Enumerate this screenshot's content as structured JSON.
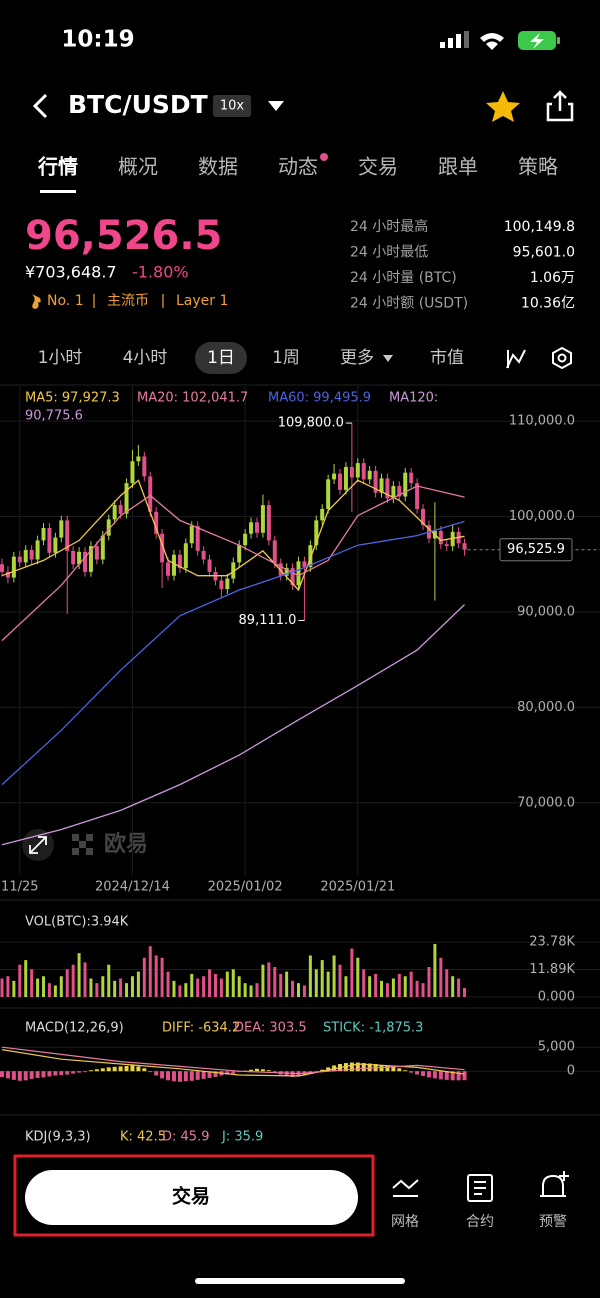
{
  "status_bar": {
    "time": "10:19"
  },
  "header": {
    "pair": "BTC/USDT",
    "leverage": "10x"
  },
  "tabs": [
    "行情",
    "概况",
    "数据",
    "动态",
    "交易",
    "跟单",
    "策略"
  ],
  "price": {
    "last": "96,526.5",
    "cny": "¥703,648.7",
    "change": "-1.80%",
    "tags": [
      "No. 1",
      "主流币",
      "Layer 1"
    ]
  },
  "stats": [
    {
      "label": "24 小时最高",
      "value": "100,149.8"
    },
    {
      "label": "24 小时最低",
      "value": "95,601.0"
    },
    {
      "label": "24 小时量 (BTC)",
      "value": "1.06万"
    },
    {
      "label": "24 小时额 (USDT)",
      "value": "10.36亿"
    }
  ],
  "timeframes": [
    "1小时",
    "4小时",
    "1日",
    "1周",
    "更多",
    "市值"
  ],
  "active_timeframe_index": 2,
  "watermark": "欧易",
  "chart_data": [
    {
      "type": "candlestick",
      "up_color": "#b0d63c",
      "down_color": "#e2508b",
      "ylim": [
        64000,
        114000
      ],
      "yticks": [
        {
          "value": 70000,
          "label": "70,000.0"
        },
        {
          "value": 80000,
          "label": "80,000.0"
        },
        {
          "value": 90000,
          "label": "90,000.0"
        },
        {
          "value": 100000,
          "label": "100,000.0"
        },
        {
          "value": 110000,
          "label": "110,000.0"
        }
      ],
      "xlim": [
        0,
        78
      ],
      "xticks": [
        {
          "value": 3,
          "label": "11/25"
        },
        {
          "value": 22,
          "label": "2024/12/14"
        },
        {
          "value": 41,
          "label": "2025/01/02"
        },
        {
          "value": 60,
          "label": "2025/01/21"
        }
      ],
      "candles": [
        [
          95000,
          95600,
          93700,
          94200
        ],
        [
          94200,
          94800,
          93000,
          93600
        ],
        [
          93600,
          96300,
          93100,
          95800
        ],
        [
          95800,
          96400,
          94700,
          95200
        ],
        [
          95200,
          97000,
          94700,
          96500
        ],
        [
          96500,
          97000,
          95000,
          95500
        ],
        [
          95500,
          98000,
          95000,
          97500
        ],
        [
          97500,
          99300,
          97000,
          98800
        ],
        [
          98800,
          99300,
          95700,
          96200
        ],
        [
          96200,
          98300,
          95700,
          97800
        ],
        [
          97800,
          100100,
          97300,
          99600
        ],
        [
          99600,
          100100,
          89800,
          96400
        ],
        [
          96400,
          96900,
          94500,
          95000
        ],
        [
          95000,
          96800,
          94500,
          96300
        ],
        [
          96300,
          96800,
          93700,
          94200
        ],
        [
          94200,
          97400,
          93700,
          96900
        ],
        [
          96900,
          97400,
          95000,
          95500
        ],
        [
          95500,
          98500,
          95000,
          98000
        ],
        [
          98000,
          100200,
          97500,
          99700
        ],
        [
          99700,
          101700,
          99200,
          101200
        ],
        [
          101200,
          101700,
          99800,
          100300
        ],
        [
          100300,
          104000,
          99800,
          103500
        ],
        [
          103500,
          107000,
          103000,
          105800
        ],
        [
          105800,
          107500,
          105300,
          106300
        ],
        [
          106300,
          106800,
          103700,
          104200
        ],
        [
          104200,
          104700,
          100000,
          100500
        ],
        [
          100500,
          101000,
          97700,
          98200
        ],
        [
          98200,
          98700,
          92500,
          95200
        ],
        [
          95200,
          95700,
          93300,
          93800
        ],
        [
          93800,
          96500,
          93300,
          96000
        ],
        [
          96000,
          96500,
          94100,
          94600
        ],
        [
          94600,
          97700,
          94100,
          97200
        ],
        [
          97200,
          99500,
          96700,
          99000
        ],
        [
          99000,
          99500,
          95900,
          96400
        ],
        [
          96400,
          96900,
          95000,
          95500
        ],
        [
          95500,
          96000,
          93700,
          94200
        ],
        [
          94200,
          94700,
          92800,
          93300
        ],
        [
          93300,
          93800,
          91500,
          92400
        ],
        [
          92400,
          94000,
          91900,
          93500
        ],
        [
          93500,
          95700,
          93000,
          95200
        ],
        [
          95200,
          97500,
          94700,
          97000
        ],
        [
          97000,
          98700,
          96500,
          98200
        ],
        [
          98200,
          99900,
          97700,
          99400
        ],
        [
          99400,
          99900,
          97800,
          98300
        ],
        [
          98300,
          102300,
          97800,
          101200
        ],
        [
          101200,
          101700,
          97000,
          97500
        ],
        [
          97500,
          98000,
          94600,
          95100
        ],
        [
          95100,
          95600,
          93300,
          93800
        ],
        [
          93800,
          95100,
          93300,
          94600
        ],
        [
          94600,
          95100,
          92300,
          92800
        ],
        [
          92800,
          95800,
          92300,
          95300
        ],
        [
          95300,
          95800,
          89111,
          94700
        ],
        [
          94700,
          97500,
          94200,
          97000
        ],
        [
          97000,
          100100,
          96500,
          99600
        ],
        [
          99600,
          101300,
          99100,
          100800
        ],
        [
          100800,
          104400,
          100300,
          103900
        ],
        [
          103900,
          105500,
          103400,
          104500
        ],
        [
          104500,
          105000,
          102300,
          102800
        ],
        [
          102800,
          105700,
          102300,
          105200
        ],
        [
          105200,
          109800,
          100500,
          104100
        ],
        [
          104100,
          106100,
          103600,
          105600
        ],
        [
          105600,
          106100,
          103400,
          103900
        ],
        [
          103900,
          105300,
          103400,
          104800
        ],
        [
          104800,
          105300,
          102000,
          102500
        ],
        [
          102500,
          104500,
          102000,
          104000
        ],
        [
          104000,
          104500,
          101400,
          101900
        ],
        [
          101900,
          103700,
          101400,
          103200
        ],
        [
          103200,
          103700,
          101600,
          102100
        ],
        [
          102100,
          105100,
          101600,
          104600
        ],
        [
          104600,
          105100,
          103000,
          103500
        ],
        [
          103500,
          104000,
          100300,
          100800
        ],
        [
          100800,
          101300,
          98600,
          99100
        ],
        [
          99100,
          99600,
          97200,
          97700
        ],
        [
          97700,
          101500,
          91200,
          98500
        ],
        [
          98500,
          99000,
          96600,
          97100
        ],
        [
          97100,
          97600,
          96400,
          96900
        ],
        [
          96900,
          99200,
          96400,
          98400
        ],
        [
          98400,
          98900,
          96700,
          97200
        ],
        [
          97200,
          97700,
          95900,
          96525.9
        ]
      ],
      "series": [
        {
          "name": "MA5",
          "legend_lines": [
            "MA5: 97,927.3"
          ],
          "color": "#f0c94a",
          "x": [
            0,
            7,
            13,
            20,
            23,
            28,
            33,
            38,
            44,
            50,
            55,
            60,
            67,
            74,
            78
          ],
          "values": [
            93800,
            95400,
            97500,
            102200,
            103800,
            95400,
            93800,
            93800,
            96400,
            92300,
            100600,
            103800,
            101700,
            97500,
            97927.3
          ]
        },
        {
          "name": "MA20",
          "legend_lines": [
            "MA20: 102,041.7"
          ],
          "color": "#e87ca0",
          "x": [
            0,
            10,
            20,
            25,
            30,
            40,
            50,
            55,
            60,
            70,
            78
          ],
          "values": [
            87000,
            92800,
            100100,
            102200,
            99600,
            97000,
            93800,
            95400,
            100100,
            103200,
            102041.7
          ]
        },
        {
          "name": "MA60",
          "legend_lines": [
            "MA60: 99,495.9"
          ],
          "color": "#4d63e0",
          "x": [
            0,
            10,
            20,
            30,
            40,
            50,
            60,
            70,
            78
          ],
          "values": [
            71900,
            77600,
            83900,
            89600,
            92300,
            94400,
            97000,
            98000,
            99495.9
          ]
        },
        {
          "name": "MA120",
          "legend_lines": [
            "MA120:",
            "90,775.6"
          ],
          "color": "#c99ad8",
          "x": [
            0,
            10,
            20,
            30,
            40,
            50,
            60,
            70,
            78
          ],
          "values": [
            65600,
            67200,
            69200,
            71900,
            75000,
            78700,
            82300,
            86000,
            90775.6
          ]
        }
      ],
      "annotations": [
        {
          "index": 59,
          "value": 109800,
          "label": "109,800.0"
        },
        {
          "index": 51,
          "value": 89111,
          "label": "89,111.0"
        }
      ],
      "last_price": {
        "value": 96525.9,
        "label": "96,525.9"
      }
    },
    {
      "type": "bar",
      "legend": "VOL(BTC):3.94K",
      "ylim": [
        0,
        26000
      ],
      "yticks": [
        {
          "value": 0,
          "label": "0.000"
        },
        {
          "value": 11890,
          "label": "11.89K"
        },
        {
          "value": 23780,
          "label": "23.78K"
        }
      ],
      "values": [
        8000,
        9000,
        7000,
        14000,
        16000,
        12000,
        8000,
        9000,
        6000,
        5000,
        9000,
        12000,
        14000,
        19000,
        15000,
        8000,
        6000,
        9000,
        14000,
        7000,
        8000,
        6000,
        9000,
        11000,
        17000,
        22000,
        18000,
        17000,
        11000,
        7000,
        5000,
        6000,
        10000,
        8000,
        9000,
        12000,
        10000,
        8000,
        11000,
        12000,
        9000,
        6000,
        5000,
        6000,
        14000,
        15000,
        13000,
        10000,
        11000,
        7000,
        6000,
        5000,
        18000,
        12000,
        16000,
        11000,
        18000,
        14000,
        9000,
        21000,
        17000,
        12000,
        9000,
        10000,
        7000,
        6000,
        8000,
        10000,
        9000,
        11000,
        7000,
        6000,
        13000,
        23000,
        17000,
        12000,
        9000,
        8000,
        3940
      ]
    },
    {
      "type": "macd",
      "ylim": [
        -6000,
        6500
      ],
      "yticks": [
        0,
        {
          "value": 5000,
          "label": "5,000"
        }
      ],
      "legend": [
        {
          "text": "MACD(12,26,9)",
          "color": "#dddddd"
        },
        {
          "text": "DIFF: -634.2",
          "color": "#f0c94a"
        },
        {
          "text": "DEA: 303.5",
          "color": "#e87ca0"
        },
        {
          "text": "STICK: -1,875.3",
          "color": "#5fc9c0"
        }
      ],
      "stick": [
        -1200,
        -1500,
        -1800,
        -2000,
        -1900,
        -1600,
        -1400,
        -1300,
        -1100,
        -900,
        -800,
        -700,
        -500,
        -300,
        -200,
        200,
        400,
        600,
        800,
        900,
        1000,
        1100,
        1200,
        1000,
        600,
        -200,
        -900,
        -1500,
        -1900,
        -2100,
        -2200,
        -2100,
        -2000,
        -1800,
        -1600,
        -1400,
        -1200,
        -900,
        -700,
        -500,
        -200,
        100,
        300,
        500,
        400,
        200,
        -300,
        -700,
        -1000,
        -1200,
        -1100,
        -900,
        -600,
        -200,
        300,
        800,
        1200,
        1500,
        1700,
        1800,
        1800,
        1700,
        1600,
        1500,
        1300,
        1100,
        900,
        600,
        200,
        -300,
        -700,
        -1000,
        -1300,
        -1500,
        -1700,
        -1800,
        -1900,
        -1900,
        -1875.3
      ],
      "pos_color": "#e8d545",
      "neg_color": "#e2508b",
      "series": [
        {
          "name": "DIFF",
          "color": "#f0c94a",
          "x": [
            0,
            10,
            20,
            30,
            40,
            50,
            60,
            70,
            78
          ],
          "values": [
            4500,
            2500,
            1500,
            500,
            -800,
            -1000,
            1500,
            800,
            -634.2
          ]
        },
        {
          "name": "DEA",
          "color": "#e87ca0",
          "x": [
            0,
            10,
            20,
            30,
            40,
            50,
            60,
            70,
            78
          ],
          "values": [
            5000,
            3500,
            2000,
            1000,
            0,
            -500,
            500,
            1200,
            303.5
          ]
        }
      ]
    }
  ],
  "kdj_legend": [
    {
      "text": "KDJ(9,3,3)",
      "color": "#dddddd"
    },
    {
      "text": "K: 42.5",
      "color": "#f0c94a"
    },
    {
      "text": "D: 45.9",
      "color": "#e87ca0"
    },
    {
      "text": "J: 35.9",
      "color": "#5fc9c0"
    }
  ],
  "bottom_bar": {
    "trade_button": "交易",
    "actions": [
      "网格",
      "合约",
      "预警"
    ]
  }
}
